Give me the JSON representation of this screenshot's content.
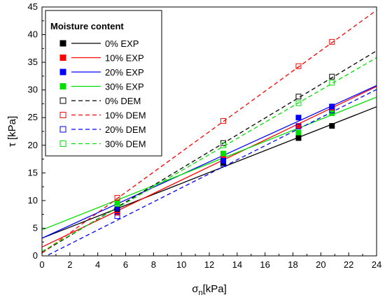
{
  "chart_data": {
    "type": "scatter",
    "xlabel_main": "σ",
    "xlabel_sub": "n",
    "xlabel_unit": "[kPa]",
    "ylabel": "τ [kPa]",
    "xlim": [
      0,
      24
    ],
    "ylim": [
      0,
      45
    ],
    "xticks": [
      0,
      2,
      4,
      6,
      8,
      10,
      12,
      14,
      16,
      18,
      20,
      22,
      24
    ],
    "yticks": [
      0,
      5,
      10,
      15,
      20,
      25,
      30,
      35,
      40,
      45
    ],
    "grid": false,
    "legend": {
      "title": "Moisture content",
      "placement": "top-left"
    },
    "series": [
      {
        "name": "0% EXP",
        "color": "#000000",
        "marker": "filled-square",
        "line": "solid",
        "x": [
          5.4,
          13.0,
          18.4,
          20.8
        ],
        "y": [
          8.0,
          16.8,
          21.3,
          23.5
        ],
        "fit": [
          3.2,
          0.99
        ]
      },
      {
        "name": "10% EXP",
        "color": "#ff0000",
        "marker": "filled-square",
        "line": "solid",
        "x": [
          5.4,
          13.0,
          18.4,
          20.8
        ],
        "y": [
          7.8,
          17.6,
          23.5,
          26.8
        ],
        "fit": [
          1.6,
          1.21
        ]
      },
      {
        "name": "20% EXP",
        "color": "#0000ff",
        "marker": "filled-square",
        "line": "solid",
        "x": [
          5.4,
          13.0,
          18.4,
          20.8
        ],
        "y": [
          8.5,
          17.2,
          25.0,
          27.0
        ],
        "fit": [
          3.2,
          1.15
        ]
      },
      {
        "name": "30% EXP",
        "color": "#00e000",
        "marker": "filled-square",
        "line": "solid",
        "x": [
          5.4,
          13.0,
          18.4,
          20.8
        ],
        "y": [
          9.6,
          18.5,
          22.3,
          25.8
        ],
        "fit": [
          4.7,
          1.0
        ]
      },
      {
        "name": "0% DEM",
        "color": "#000000",
        "marker": "open-square",
        "line": "dashed",
        "x": [
          5.4,
          13.0,
          18.4,
          20.8
        ],
        "y": [
          8.5,
          20.4,
          28.8,
          32.4
        ],
        "fit": [
          0.6,
          1.52
        ]
      },
      {
        "name": "10% DEM",
        "color": "#ff0000",
        "marker": "open-square",
        "line": "dashed",
        "x": [
          5.4,
          13.0,
          18.4,
          20.8
        ],
        "y": [
          10.5,
          24.4,
          34.3,
          38.7
        ],
        "fit": [
          0.5,
          1.83
        ]
      },
      {
        "name": "20% DEM",
        "color": "#0000ff",
        "marker": "open-square",
        "line": "dashed",
        "x": [
          5.4,
          13.0,
          18.4,
          20.8
        ],
        "y": [
          7.2,
          16.6,
          23.4,
          26.3
        ],
        "fit": [
          -0.4,
          1.27
        ]
      },
      {
        "name": "30% DEM",
        "color": "#00e000",
        "marker": "open-square",
        "line": "dashed",
        "x": [
          5.4,
          13.0,
          18.4,
          20.8
        ],
        "y": [
          9.4,
          20.0,
          27.6,
          31.3
        ],
        "fit": [
          0.8,
          1.46
        ]
      }
    ]
  }
}
